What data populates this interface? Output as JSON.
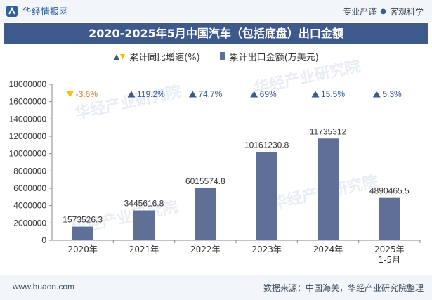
{
  "header": {
    "brand": "华经情报网",
    "tagline_left": "专业严谨",
    "tagline_right": "客观科学"
  },
  "watermark": "华经产业研究院",
  "footer": {
    "website": "www.huaon.com",
    "source": "数据来源：中国海关，华经产业研究院整理"
  },
  "colors": {
    "bar": "#5f6f96",
    "up": "#3e5a8c",
    "down": "#f2c300",
    "title_bg": "#3e5a8c"
  },
  "chart_data": {
    "type": "bar",
    "title": "2020-2025年5月中国汽车（包括底盘）出口金额",
    "categories": [
      "2020年",
      "2021年",
      "2022年",
      "2023年",
      "2024年",
      "2025年\n1-5月"
    ],
    "series": [
      {
        "name": "累计出口金额(万美元)",
        "values": [
          1573526.3,
          3445616.8,
          6015574.8,
          10161230.8,
          11735312,
          4890465.5
        ],
        "labels": [
          "1573526.3",
          "3445616.8",
          "6015574.8",
          "10161230.8",
          "11735312",
          "4890465.5"
        ]
      }
    ],
    "growth": {
      "name": "累计同比增速(%)",
      "values": [
        -3.6,
        119.2,
        74.7,
        69,
        15.5,
        5.3
      ],
      "labels": [
        "-3.6%",
        "119.2%",
        "74.7%",
        "69%",
        "15.5%",
        "5.3%"
      ]
    },
    "ylim": [
      0,
      18000000
    ],
    "yticks": [
      "0",
      "2000000",
      "4000000",
      "6000000",
      "8000000",
      "10000000",
      "12000000",
      "14000000",
      "16000000",
      "18000000"
    ],
    "grid": false,
    "legend": "top-center"
  }
}
